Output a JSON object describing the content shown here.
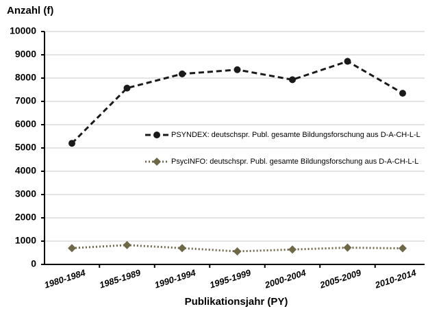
{
  "chart_data": {
    "type": "line",
    "y_label": "Anzahl (f)",
    "x_label": "Publikationsjahr (PY)",
    "categories": [
      "1980-1984",
      "1985-1989",
      "1990-1994",
      "1995-1999",
      "2000-2004",
      "2005-2009",
      "2010-2014"
    ],
    "series": [
      {
        "name": "PSYNDEX: deutschspr. Publ. gesamte Bildungsforschung aus D-A-CH-L-L",
        "color": "#1a1a1a",
        "marker": "circle",
        "dash": "dashed",
        "values": [
          5200,
          7570,
          8180,
          8360,
          7930,
          8720,
          7350
        ]
      },
      {
        "name": "PsycINFO: deutschspr. Publ. gesamte Bildungsforschung aus D-A-CH-L-L",
        "color": "#6e6748",
        "marker": "diamond",
        "dash": "dotted",
        "values": [
          700,
          830,
          700,
          560,
          640,
          720,
          690
        ]
      }
    ],
    "ylim": [
      0,
      10000
    ],
    "yticks": [
      0,
      1000,
      2000,
      3000,
      4000,
      5000,
      6000,
      7000,
      8000,
      9000,
      10000
    ],
    "grid": true
  }
}
